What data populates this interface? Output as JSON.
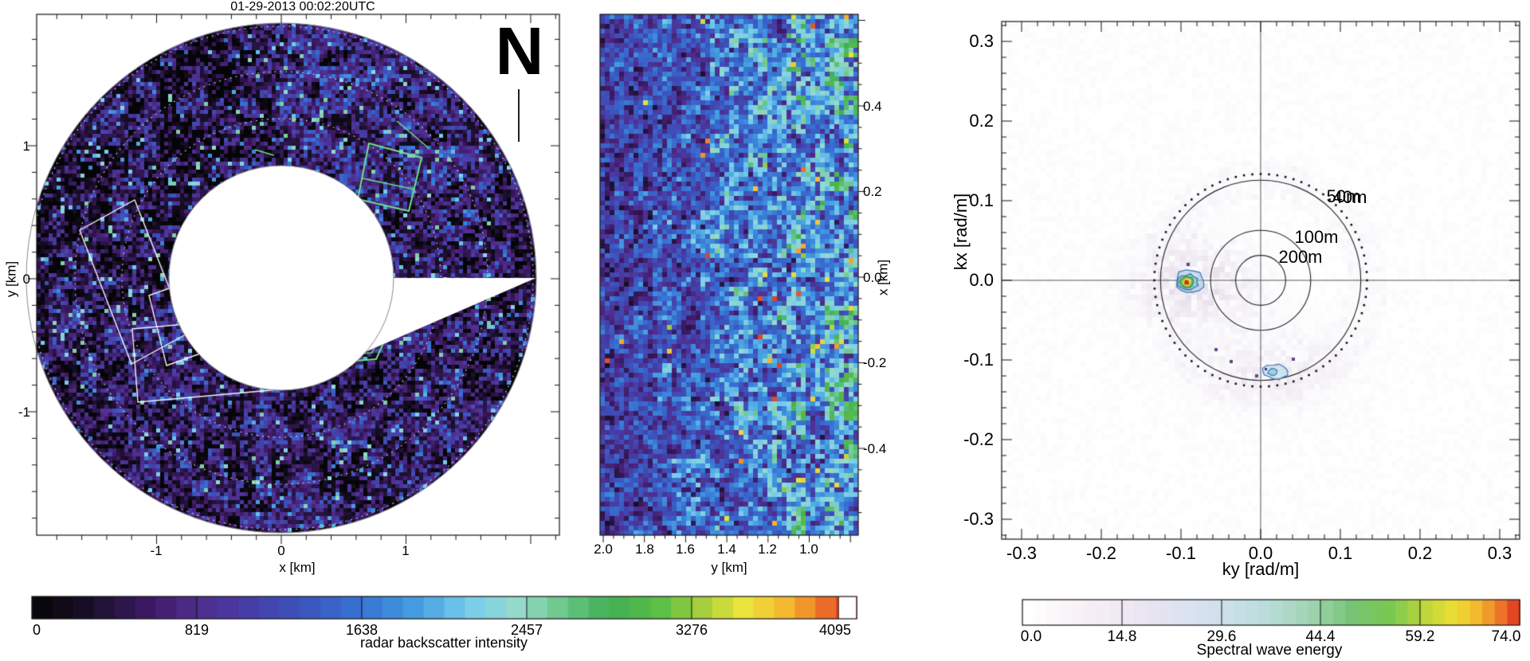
{
  "left_panel": {
    "title": "01-29-2013 00:02:20UTC",
    "compass": "N",
    "xlabel": "x [km]",
    "ylabel": "y [km]",
    "x_tick_labels": [
      "-1",
      "0",
      "1"
    ],
    "y_tick_labels": [
      "1",
      "0",
      "-1"
    ],
    "colorbar": {
      "label": "radar backscatter intensity",
      "tick_labels": [
        "0",
        "819",
        "1638",
        "2457",
        "3276",
        "4095"
      ]
    }
  },
  "middle_panel": {
    "xlabel": "y [km]",
    "ylabel": "x [km]",
    "x_tick_labels": [
      "2.0",
      "1.8",
      "1.6",
      "1.4",
      "1.2",
      "1.0"
    ],
    "y_tick_labels": [
      "0.4",
      "0.2",
      "0.0",
      "-0.2",
      "-0.4"
    ]
  },
  "right_panel": {
    "xlabel": "ky [rad/m]",
    "ylabel": "kx [rad/m]",
    "x_tick_labels": [
      "-0.3",
      "-0.2",
      "-0.1",
      "0.0",
      "0.1",
      "0.2",
      "0.3"
    ],
    "y_tick_labels": [
      "0.3",
      "0.2",
      "0.1",
      "0.0",
      "-0.1",
      "-0.2",
      "-0.3"
    ],
    "ring_labels": [
      "40m",
      "50m",
      "100m",
      "200m"
    ],
    "colorbar": {
      "label": "Spectral wave energy",
      "tick_labels": [
        "0.0",
        "14.8",
        "29.6",
        "44.4",
        "59.2",
        "74.0"
      ]
    }
  },
  "colors": {
    "palette_low": "#060608",
    "palette_high": "#da2c20",
    "spectrum_low": "#ffffff",
    "spectrum_high": "#dc3022"
  },
  "chart_data": [
    {
      "type": "heatmap",
      "name": "radar_backscatter_ppi",
      "title": "01-29-2013 00:02:20UTC",
      "xlabel": "x [km]",
      "ylabel": "y [km]",
      "xticks": [
        -1,
        0,
        1
      ],
      "yticks": [
        1,
        0,
        -1
      ],
      "xlim": [
        -2.0,
        2.2
      ],
      "ylim": [
        -2.0,
        2.0
      ],
      "annulus_inner_radius_km": 0.9,
      "annulus_outer_radius_km": 2.05,
      "north_marker": "N",
      "colorbar": {
        "label": "radar backscatter intensity",
        "range": [
          0,
          4095
        ],
        "ticks": [
          0,
          819,
          1638,
          2457,
          3276,
          4095
        ]
      },
      "features": [
        "three white rectangular analysis boxes in lower-left of annulus",
        "bright green polygon outlines upper-right and lower-center (hexagon)",
        "dotted white range rings",
        "speckled dark purple/blue sea-clutter texture"
      ]
    },
    {
      "type": "heatmap",
      "name": "radar_subimage_zoom",
      "xlabel": "y [km]",
      "ylabel": "x [km]",
      "xticks": [
        2.0,
        1.8,
        1.6,
        1.4,
        1.2,
        1.0
      ],
      "yticks": [
        0.4,
        0.2,
        0.0,
        -0.2,
        -0.4
      ],
      "xlim": [
        2.05,
        0.78
      ],
      "ylim": [
        -0.61,
        0.61
      ],
      "description": "zoomed backscatter patch; dark blue/purple speckle on left grading to cyan-green clutter with sparse yellow/orange/red peaks toward right"
    },
    {
      "type": "heatmap",
      "name": "wavenumber_spectrum",
      "xlabel": "ky [rad/m]",
      "ylabel": "kx [rad/m]",
      "xticks": [
        -0.3,
        -0.2,
        -0.1,
        0.0,
        0.1,
        0.2,
        0.3
      ],
      "yticks": [
        0.3,
        0.2,
        0.1,
        0.0,
        -0.1,
        -0.2,
        -0.3
      ],
      "xlim": [
        -0.325,
        0.325
      ],
      "ylim": [
        -0.325,
        0.325
      ],
      "wavelength_rings_m": [
        200,
        100,
        50,
        40
      ],
      "peaks": [
        {
          "ky": -0.09,
          "kx": 0.0,
          "energy": 74.0,
          "note": "dominant spectral peak, red core with contours"
        },
        {
          "ky": 0.02,
          "kx": -0.115,
          "energy": 18.0,
          "note": "secondary weak peak, light blue contour"
        }
      ],
      "colorbar": {
        "label": "Spectral wave energy",
        "range": [
          0.0,
          74.0
        ],
        "ticks": [
          0.0,
          14.8,
          29.6,
          44.4,
          59.2,
          74.0
        ]
      }
    }
  ]
}
